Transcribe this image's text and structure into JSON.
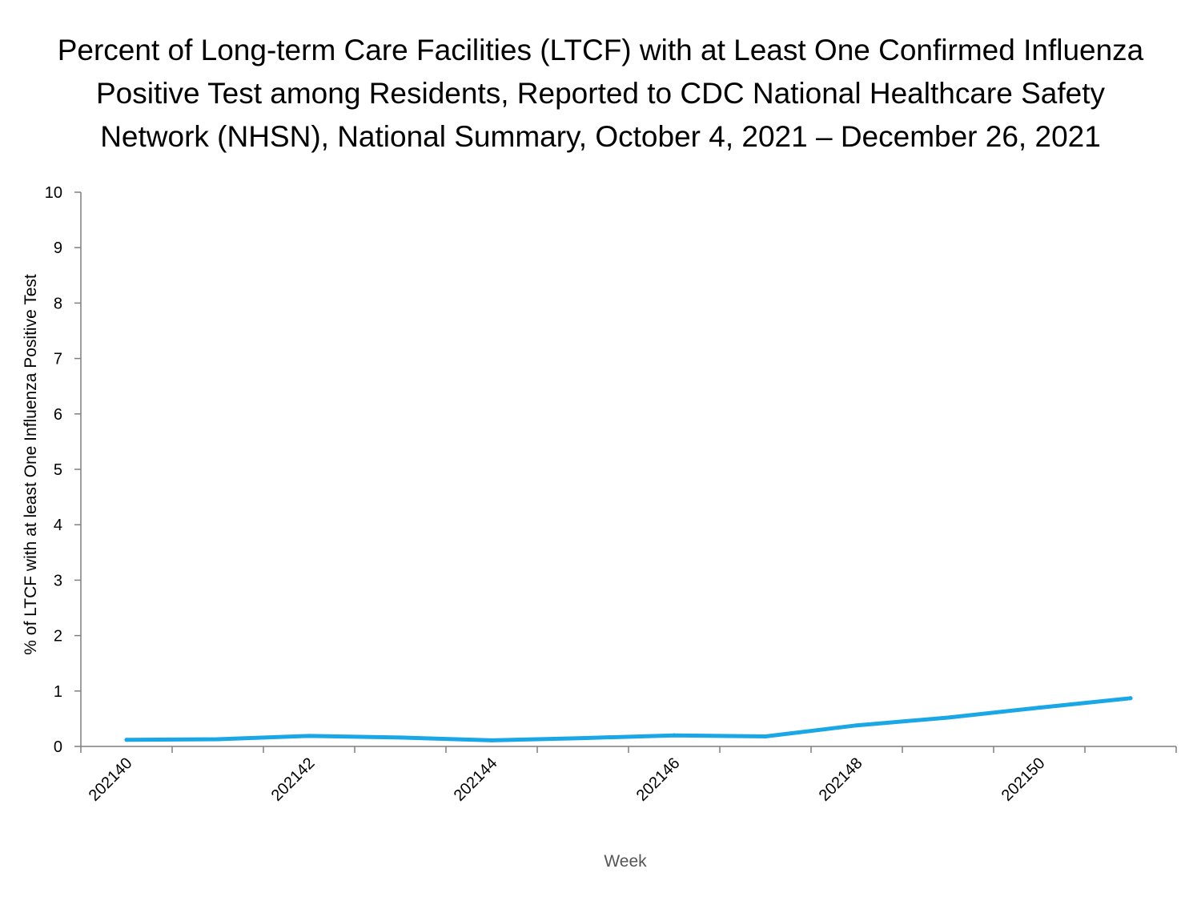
{
  "chart_data": {
    "type": "line",
    "title_lines": [
      "Percent of Long-term Care Facilities (LTCF) with at Least One Confirmed Influenza",
      "Positive Test among Residents, Reported to CDC National Healthcare Safety",
      "Network (NHSN), National Summary, October 4, 2021 – December 26, 2021"
    ],
    "xlabel": "Week",
    "ylabel": "% of LTCF with at least One Influenza Positive Test",
    "ylim": [
      0,
      10
    ],
    "y_ticks": [
      "0",
      "1",
      "2",
      "3",
      "4",
      "5",
      "6",
      "7",
      "8",
      "9",
      "10"
    ],
    "x": [
      "202140",
      "202141",
      "202142",
      "202143",
      "202144",
      "202145",
      "202146",
      "202147",
      "202148",
      "202149",
      "202150",
      "202151"
    ],
    "x_tick_labels": [
      "202140",
      "202142",
      "202144",
      "202146",
      "202148",
      "202150"
    ],
    "series": [
      {
        "color": "#1aa7e6",
        "values": [
          0.12,
          0.13,
          0.19,
          0.16,
          0.11,
          0.15,
          0.2,
          0.18,
          0.38,
          0.52,
          0.7,
          0.87
        ]
      }
    ],
    "grid": false,
    "legend": "none"
  }
}
